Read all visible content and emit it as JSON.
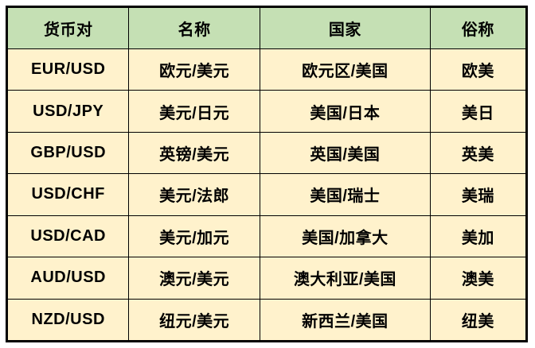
{
  "table": {
    "columns": [
      "货币对",
      "名称",
      "国家",
      "俗称"
    ],
    "rows": [
      [
        "EUR/USD",
        "欧元/美元",
        "欧元区/美国",
        "欧美"
      ],
      [
        "USD/JPY",
        "美元/日元",
        "美国/日本",
        "美日"
      ],
      [
        "GBP/USD",
        "英镑/美元",
        "英国/美国",
        "英美"
      ],
      [
        "USD/CHF",
        "美元/法郎",
        "美国/瑞士",
        "美瑞"
      ],
      [
        "USD/CAD",
        "美元/加元",
        "美国/加拿大",
        "美加"
      ],
      [
        "AUD/USD",
        "澳元/美元",
        "澳大利亚/美国",
        "澳美"
      ],
      [
        "NZD/USD",
        "纽元/美元",
        "新西兰/美国",
        "纽美"
      ]
    ],
    "colors": {
      "header_bg": "#c5e0b4",
      "row_bg": "#fff2cc",
      "border": "#000000",
      "text": "#000000"
    }
  }
}
